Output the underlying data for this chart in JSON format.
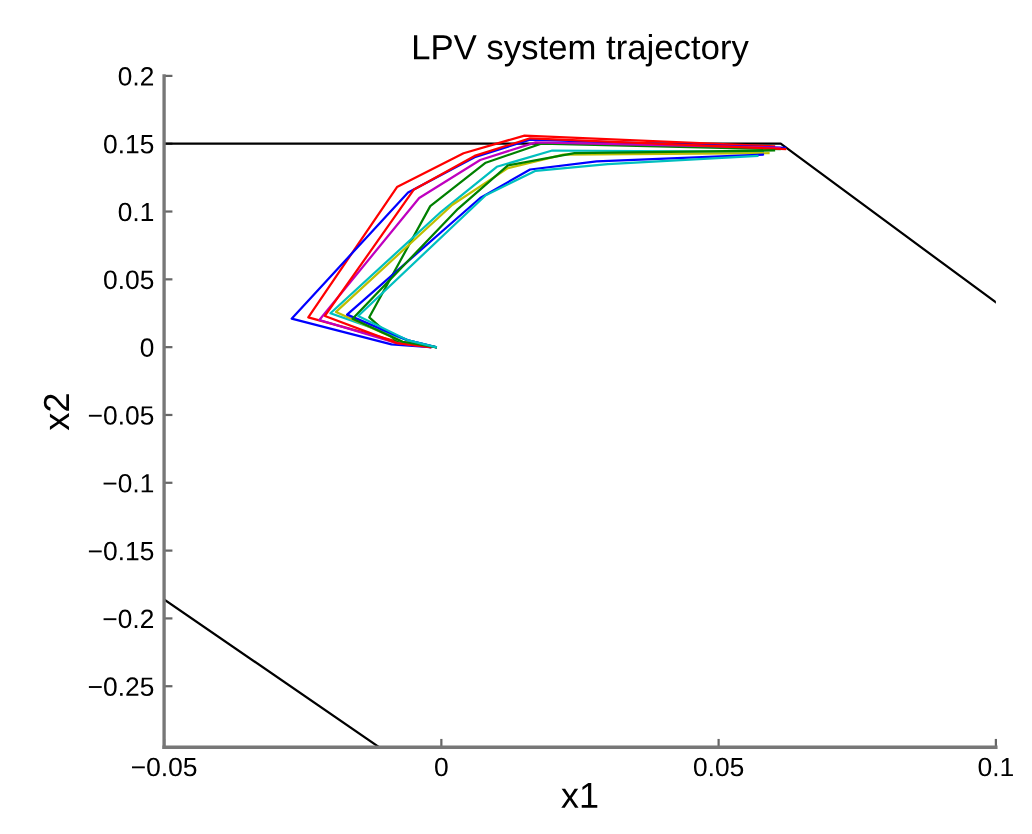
{
  "chart_data": {
    "type": "line",
    "title": "LPV system trajectory",
    "xlabel": "x1",
    "ylabel": "x2",
    "xlim": [
      -0.05,
      0.1
    ],
    "ylim": [
      -0.295,
      0.2
    ],
    "xticks": [
      {
        "value": -0.05,
        "label": "−0.05"
      },
      0,
      0.05,
      0.1
    ],
    "yticks": [
      {
        "value": -0.25,
        "label": "−0.25"
      },
      {
        "value": -0.2,
        "label": "−0.2"
      },
      {
        "value": -0.15,
        "label": "−0.15"
      },
      {
        "value": -0.1,
        "label": "−0.1"
      },
      {
        "value": -0.05,
        "label": "−0.05"
      },
      0,
      0.05,
      0.1,
      0.15,
      0.2
    ],
    "grid": false,
    "legend": false,
    "line_style": "solid",
    "marker": "none",
    "series": [
      {
        "color": "#000000",
        "x": [
          -0.05,
          0.0612,
          0.1
        ],
        "values": [
          0.15,
          0.15,
          0.033
        ]
      },
      {
        "color": "#000000",
        "x": [
          -0.05,
          -0.0112
        ],
        "values": [
          -0.186,
          -0.295
        ]
      },
      {
        "color": "#ff0000",
        "x": [
          -0.001,
          -0.007,
          -0.024,
          -0.008,
          0.004,
          0.015,
          0.06
        ],
        "values": [
          0,
          0.003,
          0.022,
          0.118,
          0.143,
          0.156,
          0.148
        ]
      },
      {
        "color": "#0000ff",
        "x": [
          -0.002,
          -0.009,
          -0.027,
          -0.006,
          0.006,
          0.016,
          0.062
        ],
        "values": [
          0,
          0.002,
          0.021,
          0.114,
          0.14,
          0.153,
          0.147
        ]
      },
      {
        "color": "#008000",
        "x": [
          -0.001,
          -0.008,
          -0.013,
          -0.002,
          0.008,
          0.018,
          0.061
        ],
        "values": [
          0,
          0.004,
          0.022,
          0.104,
          0.136,
          0.15,
          0.146
        ]
      },
      {
        "color": "#00bfbf",
        "x": [
          -0.001,
          -0.006,
          -0.02,
          0.0,
          0.01,
          0.02,
          0.058
        ],
        "values": [
          0,
          0.005,
          0.025,
          0.1,
          0.133,
          0.145,
          0.144
        ]
      },
      {
        "color": "#bf00bf",
        "x": [
          -0.002,
          -0.008,
          -0.022,
          -0.004,
          0.007,
          0.017,
          0.061
        ],
        "values": [
          0,
          0.003,
          0.02,
          0.11,
          0.138,
          0.151,
          0.147
        ]
      },
      {
        "color": "#bfbf00",
        "x": [
          -0.001,
          -0.007,
          -0.019,
          0.002,
          0.012,
          0.022,
          0.059
        ],
        "values": [
          0,
          0.004,
          0.026,
          0.105,
          0.132,
          0.142,
          0.143
        ]
      },
      {
        "color": "#0000ff",
        "x": [
          -0.001,
          -0.006,
          -0.017,
          0.007,
          0.016,
          0.028,
          0.058
        ],
        "values": [
          0,
          0.005,
          0.024,
          0.11,
          0.131,
          0.137,
          0.142
        ]
      },
      {
        "color": "#ff0000",
        "x": [
          -0.002,
          -0.008,
          -0.021,
          -0.005,
          0.006,
          0.016,
          0.062
        ],
        "values": [
          0,
          0.003,
          0.023,
          0.116,
          0.141,
          0.154,
          0.146
        ]
      },
      {
        "color": "#008000",
        "x": [
          -0.001,
          -0.007,
          -0.016,
          0.003,
          0.012,
          0.024,
          0.06
        ],
        "values": [
          0,
          0.004,
          0.021,
          0.102,
          0.134,
          0.143,
          0.145
        ]
      },
      {
        "color": "#00bfbf",
        "x": [
          -0.001,
          -0.006,
          -0.015,
          0.008,
          0.017,
          0.03,
          0.057
        ],
        "values": [
          0,
          0.005,
          0.023,
          0.112,
          0.13,
          0.135,
          0.141
        ]
      }
    ]
  }
}
